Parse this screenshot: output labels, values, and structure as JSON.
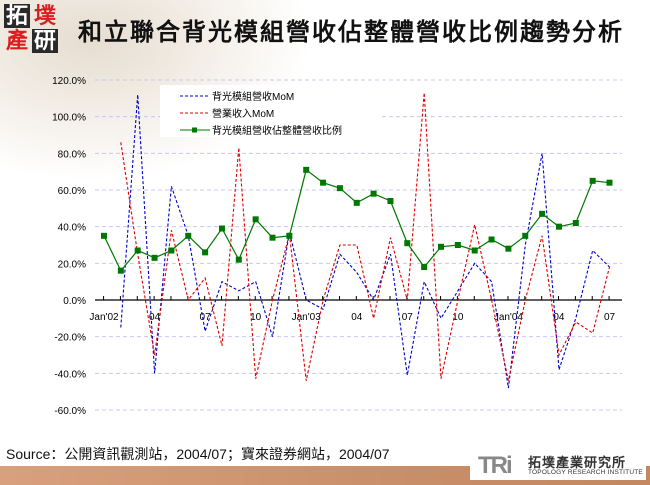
{
  "header": {
    "logo_chars": [
      "拓",
      "墣",
      "產",
      "研"
    ],
    "title": "和立聯合背光模組營收佔整體營收比例趨勢分析"
  },
  "chart_data": {
    "type": "line",
    "title": "和立聯合背光模組營收佔整體營收比例趨勢分析",
    "xlabel": "",
    "ylabel": "",
    "ylim": [
      -60,
      120
    ],
    "yticks": [
      120,
      100,
      80,
      60,
      40,
      20,
      0,
      -20,
      -40,
      -60
    ],
    "ytick_labels": [
      "120.0%",
      "100.0%",
      "80.0%",
      "60.0%",
      "40.0%",
      "20.0%",
      "0.0%",
      "-20.0%",
      "-40.0%",
      "-60.0%"
    ],
    "grid": true,
    "legend_position": "top-left-inside",
    "x": [
      "Jan'02",
      "Feb'02",
      "Mar'02",
      "Apr'02",
      "May'02",
      "Jun'02",
      "Jul'02",
      "Aug'02",
      "Sep'02",
      "Oct'02",
      "Nov'02",
      "Dec'02",
      "Jan'03",
      "Feb'03",
      "Mar'03",
      "Apr'03",
      "May'03",
      "Jun'03",
      "Jul'03",
      "Aug'03",
      "Sep'03",
      "Oct'03",
      "Nov'03",
      "Dec'03",
      "Jan'04",
      "Feb'04",
      "Mar'04",
      "Apr'04",
      "May'04",
      "Jun'04",
      "Jul'04"
    ],
    "xtick_labels": [
      {
        "index": 0,
        "label": "Jan'02"
      },
      {
        "index": 3,
        "label": "04"
      },
      {
        "index": 6,
        "label": "07"
      },
      {
        "index": 9,
        "label": "10"
      },
      {
        "index": 12,
        "label": "Jan'03"
      },
      {
        "index": 15,
        "label": "04"
      },
      {
        "index": 18,
        "label": "07"
      },
      {
        "index": 21,
        "label": "10"
      },
      {
        "index": 24,
        "label": "Jan'04"
      },
      {
        "index": 27,
        "label": "04"
      },
      {
        "index": 30,
        "label": "07"
      }
    ],
    "series": [
      {
        "name": "背光模組營收MoM",
        "color": "#0000cc",
        "style": "dashed",
        "values": [
          null,
          -15,
          112,
          -40,
          62,
          35,
          -17,
          10,
          5,
          10,
          -20,
          37,
          0,
          -5,
          25,
          15,
          0,
          25,
          -41,
          10,
          -10,
          5,
          20,
          10,
          -48,
          30,
          80,
          -38,
          -10,
          27,
          18
        ]
      },
      {
        "name": "營業收入MoM",
        "color": "#e00000",
        "style": "dashed",
        "values": [
          null,
          86,
          25,
          -30,
          38,
          0,
          12,
          -25,
          83,
          -43,
          0,
          36,
          -44,
          0,
          30,
          30,
          -10,
          34,
          0,
          113,
          -43,
          0,
          41,
          0,
          -44,
          0,
          35,
          -30,
          -12,
          -18,
          18
        ]
      },
      {
        "name": "背光模組營收佔整體營收比例",
        "color": "#007700",
        "style": "solid-square-markers",
        "values": [
          35,
          16,
          27,
          23,
          27,
          35,
          26,
          39,
          22,
          44,
          34,
          35,
          71,
          64,
          61,
          53,
          58,
          54,
          31,
          18,
          29,
          30,
          27,
          33,
          28,
          35,
          47,
          40,
          42,
          65,
          64
        ]
      }
    ]
  },
  "footer": {
    "source": "Source：公開資訊觀測站，2004/07；寶來證券網站，2004/07",
    "brand_mark": "TRi",
    "brand_cn": "拓墣產業研究所",
    "brand_en": "TOPOLOGY RESEARCH INSTITUTE"
  }
}
